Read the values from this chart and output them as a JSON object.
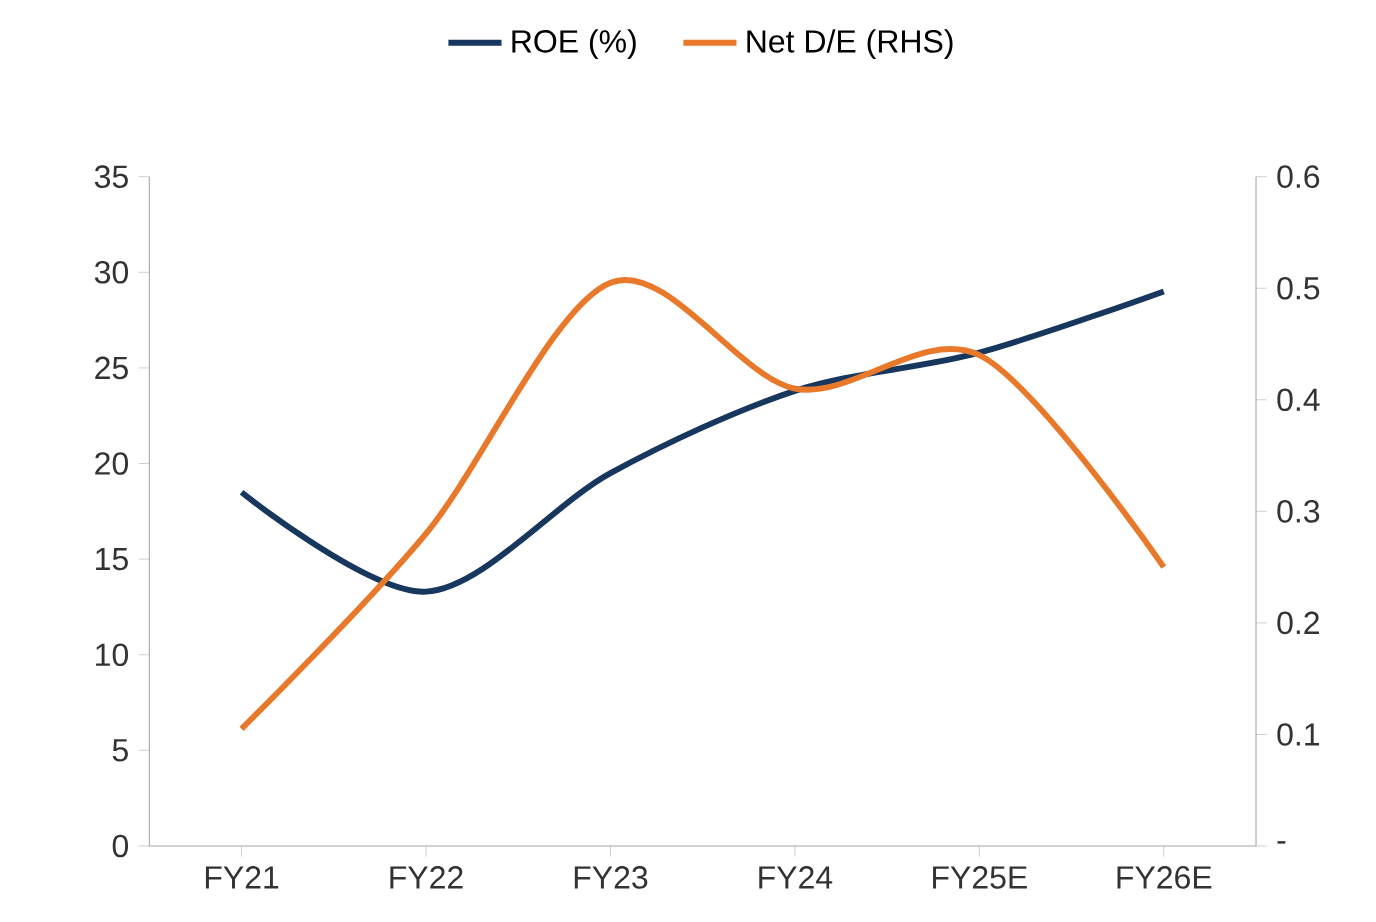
{
  "chart_data": {
    "type": "line",
    "categories": [
      "FY21",
      "FY22",
      "FY23",
      "FY24",
      "FY25E",
      "FY26E"
    ],
    "series": [
      {
        "name": "ROE (%)",
        "color": "#17375e",
        "values": [
          18.5,
          13.3,
          19.5,
          23.8,
          25.8,
          29.0
        ]
      },
      {
        "name": "Net D/E (RHS)",
        "color": "#e8792b",
        "axis": "y2",
        "values": [
          0.105,
          0.28,
          0.505,
          0.41,
          0.44,
          0.25
        ]
      }
    ],
    "ylim": [
      0,
      35
    ],
    "yticks": [
      0,
      5,
      10,
      15,
      20,
      25,
      30,
      35
    ],
    "y2lim": [
      0,
      0.6
    ],
    "y2ticks": [
      {
        "value": 0,
        "label": "-"
      },
      0.1,
      0.2,
      0.3,
      0.4,
      0.5,
      0.6
    ],
    "legend": "top",
    "grid": false
  }
}
